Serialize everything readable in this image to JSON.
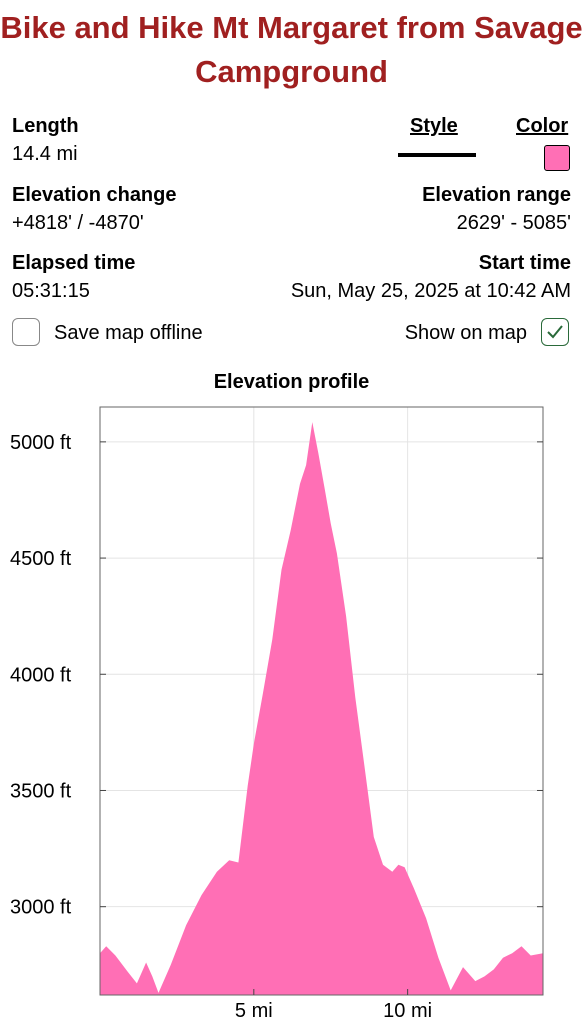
{
  "title": "Bike and Hike Mt Margaret from Savage Campground",
  "stats": {
    "length_label": "Length",
    "length_value": "14.4 mi",
    "style_label": "Style",
    "color_label": "Color",
    "elev_change_label": "Elevation change",
    "elev_change_value": "+4818' / -4870'",
    "elev_range_label": "Elevation range",
    "elev_range_value": "2629' - 5085'",
    "elapsed_label": "Elapsed time",
    "elapsed_value": "05:31:15",
    "start_label": "Start time",
    "start_value": "Sun, May 25, 2025 at 10:42 AM"
  },
  "options": {
    "save_offline_label": "Save map offline",
    "save_offline_checked": false,
    "show_on_map_label": "Show on map",
    "show_on_map_checked": true
  },
  "colors": {
    "track": "#ff6fb5",
    "title": "#a02020",
    "check": "#2a6a3a"
  },
  "chart_data": {
    "type": "area",
    "title": "Elevation profile",
    "xlabel": "",
    "ylabel": "",
    "xlim": [
      0,
      14.4
    ],
    "ylim": [
      2620,
      5150
    ],
    "x_ticks": [
      5,
      10
    ],
    "x_tick_labels": [
      "5 mi",
      "10 mi"
    ],
    "y_ticks": [
      3000,
      3500,
      4000,
      4500,
      5000
    ],
    "y_tick_labels": [
      "3000 ft",
      "3500 ft",
      "4000 ft",
      "4500 ft",
      "5000 ft"
    ],
    "grid": true,
    "series": [
      {
        "x": [
          0,
          0.2,
          0.5,
          0.9,
          1.2,
          1.5,
          1.7,
          1.9,
          2.3,
          2.8,
          3.3,
          3.8,
          4.2,
          4.5,
          4.8,
          5.0,
          5.3,
          5.6,
          5.9,
          6.2,
          6.5,
          6.7,
          6.9,
          7.1,
          7.3,
          7.5,
          7.7,
          8.0,
          8.3,
          8.6,
          8.9,
          9.2,
          9.5,
          9.7,
          9.9,
          10.2,
          10.6,
          11.0,
          11.4,
          11.8,
          12.2,
          12.5,
          12.8,
          13.1,
          13.4,
          13.7,
          14.0,
          14.4
        ],
        "y": [
          2800,
          2830,
          2790,
          2720,
          2670,
          2760,
          2700,
          2629,
          2750,
          2920,
          3050,
          3150,
          3200,
          3190,
          3520,
          3700,
          3920,
          4150,
          4450,
          4620,
          4820,
          4900,
          5085,
          4950,
          4800,
          4650,
          4520,
          4250,
          3900,
          3600,
          3300,
          3180,
          3150,
          3180,
          3170,
          3080,
          2950,
          2780,
          2640,
          2740,
          2680,
          2700,
          2730,
          2780,
          2800,
          2830,
          2790,
          2800
        ]
      }
    ]
  }
}
